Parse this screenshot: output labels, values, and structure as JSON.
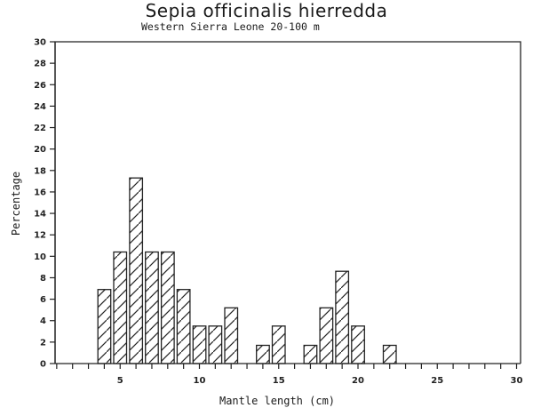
{
  "chart_data": {
    "type": "bar",
    "title": "Sepia officinalis hierredda",
    "subtitle": "Western Sierra Leone 20-100 m",
    "xlabel": "Mantle length (cm)",
    "ylabel": "Percentage",
    "xlim": [
      0,
      30
    ],
    "ylim": [
      0,
      30
    ],
    "x_ticks": [
      5,
      10,
      15,
      20,
      25,
      30
    ],
    "y_ticks": [
      0,
      2,
      4,
      6,
      8,
      10,
      12,
      14,
      16,
      18,
      20,
      22,
      24,
      26,
      28,
      30
    ],
    "grid": false,
    "legend": null,
    "bar_pattern": "diagonal-hatch",
    "categories": [
      4,
      5,
      6,
      7,
      8,
      9,
      10,
      11,
      12,
      14,
      15,
      17,
      18,
      19,
      20,
      22
    ],
    "values": [
      6.9,
      10.4,
      17.3,
      10.4,
      10.4,
      6.9,
      3.5,
      3.5,
      5.2,
      1.7,
      3.5,
      1.7,
      5.2,
      8.6,
      3.5,
      1.7
    ]
  }
}
